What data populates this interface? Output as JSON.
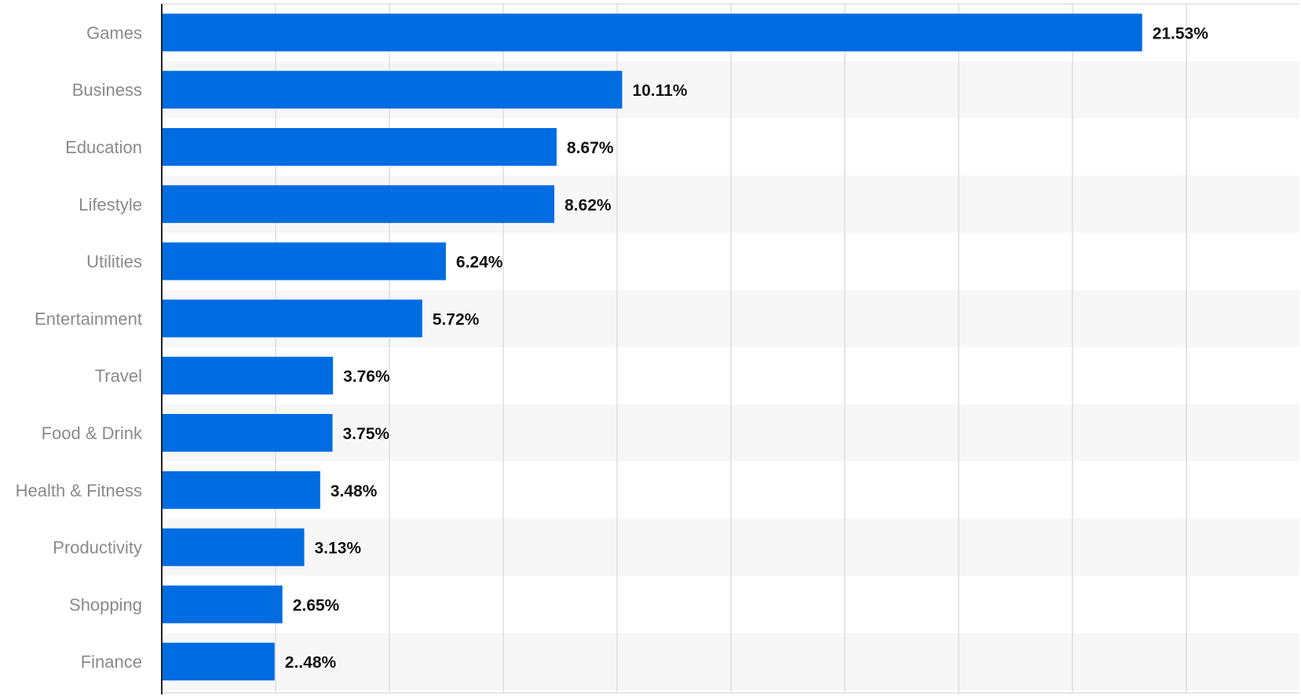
{
  "chart_data": {
    "type": "bar",
    "orientation": "horizontal",
    "categories": [
      "Games",
      "Business",
      "Education",
      "Lifestyle",
      "Utilities",
      "Entertainment",
      "Travel",
      "Food & Drink",
      "Health & Fitness",
      "Productivity",
      "Shopping",
      "Finance"
    ],
    "values": [
      21.53,
      10.11,
      8.67,
      8.62,
      6.24,
      5.72,
      3.76,
      3.75,
      3.48,
      3.13,
      2.65,
      2.48
    ],
    "value_labels": [
      "21.53%",
      "10.11%",
      "8.67%",
      "8.62%",
      "6.24%",
      "5.72%",
      "3.76%",
      "3.75%",
      "3.48%",
      "3.13%",
      "2.65%",
      "2..48%"
    ],
    "title": "",
    "xlabel": "",
    "ylabel": "",
    "xlim": [
      0,
      25
    ],
    "grid": true,
    "legend": "none",
    "colors": {
      "bar": "#006ce2",
      "band": "#f7f7f7",
      "grid": "#dddddd",
      "axis": "#222222",
      "category_text": "#8a8a8a",
      "value_text": "#111111"
    }
  }
}
